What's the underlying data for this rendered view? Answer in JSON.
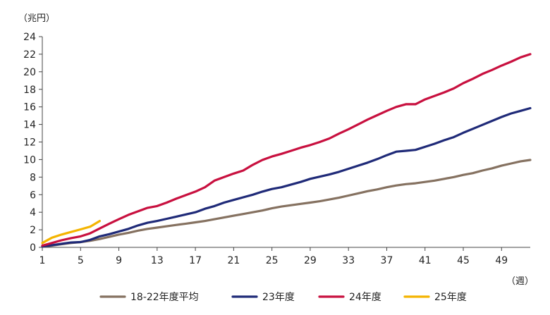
{
  "chart_data": {
    "type": "line",
    "ylabel": "（兆円）",
    "xlabel": "（週）",
    "ylim": [
      0,
      24
    ],
    "xlim": [
      1,
      52
    ],
    "yticks": [
      0,
      2,
      4,
      6,
      8,
      10,
      12,
      14,
      16,
      18,
      20,
      22,
      24
    ],
    "xticks": [
      1,
      5,
      9,
      13,
      17,
      21,
      25,
      29,
      33,
      37,
      41,
      45,
      49
    ],
    "grid": false,
    "legend_position": "bottom",
    "series": [
      {
        "name": "18-22年度平均",
        "color": "#857160",
        "x": [
          1,
          2,
          3,
          4,
          5,
          6,
          7,
          8,
          9,
          10,
          11,
          12,
          13,
          14,
          15,
          16,
          17,
          18,
          19,
          20,
          21,
          22,
          23,
          24,
          25,
          26,
          27,
          28,
          29,
          30,
          31,
          32,
          33,
          34,
          35,
          36,
          37,
          38,
          39,
          40,
          41,
          42,
          43,
          44,
          45,
          46,
          47,
          48,
          49,
          50,
          51,
          52
        ],
        "values": [
          0.1,
          0.2,
          0.35,
          0.5,
          0.6,
          0.75,
          0.95,
          1.2,
          1.45,
          1.65,
          1.9,
          2.1,
          2.25,
          2.4,
          2.55,
          2.7,
          2.85,
          3.0,
          3.2,
          3.4,
          3.6,
          3.8,
          4.0,
          4.2,
          4.45,
          4.65,
          4.8,
          4.95,
          5.1,
          5.25,
          5.45,
          5.65,
          5.9,
          6.15,
          6.4,
          6.6,
          6.85,
          7.05,
          7.2,
          7.3,
          7.45,
          7.6,
          7.8,
          8.0,
          8.25,
          8.45,
          8.75,
          9.0,
          9.3,
          9.55,
          9.8,
          9.95
        ]
      },
      {
        "name": "23年度",
        "color": "#1f2a78",
        "x": [
          1,
          2,
          3,
          4,
          5,
          6,
          7,
          8,
          9,
          10,
          11,
          12,
          13,
          14,
          15,
          16,
          17,
          18,
          19,
          20,
          21,
          22,
          23,
          24,
          25,
          26,
          27,
          28,
          29,
          30,
          31,
          32,
          33,
          34,
          35,
          36,
          37,
          38,
          39,
          40,
          41,
          42,
          43,
          44,
          45,
          46,
          47,
          48,
          49,
          50,
          51,
          52
        ],
        "values": [
          0.1,
          0.25,
          0.4,
          0.55,
          0.6,
          0.85,
          1.25,
          1.5,
          1.8,
          2.1,
          2.5,
          2.8,
          3.0,
          3.25,
          3.5,
          3.75,
          4.0,
          4.4,
          4.7,
          5.1,
          5.4,
          5.7,
          6.0,
          6.35,
          6.65,
          6.85,
          7.15,
          7.45,
          7.8,
          8.05,
          8.3,
          8.6,
          8.95,
          9.3,
          9.65,
          10.05,
          10.5,
          10.9,
          11.0,
          11.1,
          11.45,
          11.8,
          12.2,
          12.55,
          13.05,
          13.5,
          13.95,
          14.4,
          14.85,
          15.25,
          15.55,
          15.85
        ]
      },
      {
        "name": "24年度",
        "color": "#c8103f",
        "x": [
          1,
          2,
          3,
          4,
          5,
          6,
          7,
          8,
          9,
          10,
          11,
          12,
          13,
          14,
          15,
          16,
          17,
          18,
          19,
          20,
          21,
          22,
          23,
          24,
          25,
          26,
          27,
          28,
          29,
          30,
          31,
          32,
          33,
          34,
          35,
          36,
          37,
          38,
          39,
          40,
          41,
          42,
          43,
          44,
          45,
          46,
          47,
          48,
          49,
          50,
          51,
          52
        ],
        "values": [
          0.2,
          0.5,
          0.8,
          1.05,
          1.25,
          1.6,
          2.15,
          2.7,
          3.2,
          3.7,
          4.1,
          4.5,
          4.7,
          5.1,
          5.55,
          5.95,
          6.35,
          6.85,
          7.6,
          8.0,
          8.4,
          8.75,
          9.4,
          9.95,
          10.35,
          10.65,
          11.0,
          11.35,
          11.65,
          12.0,
          12.4,
          12.95,
          13.45,
          14.0,
          14.55,
          15.05,
          15.55,
          16.0,
          16.3,
          16.3,
          16.85,
          17.25,
          17.65,
          18.1,
          18.7,
          19.2,
          19.75,
          20.2,
          20.7,
          21.15,
          21.65,
          22.0
        ]
      },
      {
        "name": "25年度",
        "color": "#f4b400",
        "x": [
          1,
          2,
          3,
          4,
          5,
          6,
          7
        ],
        "values": [
          0.5,
          1.1,
          1.45,
          1.75,
          2.05,
          2.35,
          3.0
        ]
      }
    ]
  }
}
